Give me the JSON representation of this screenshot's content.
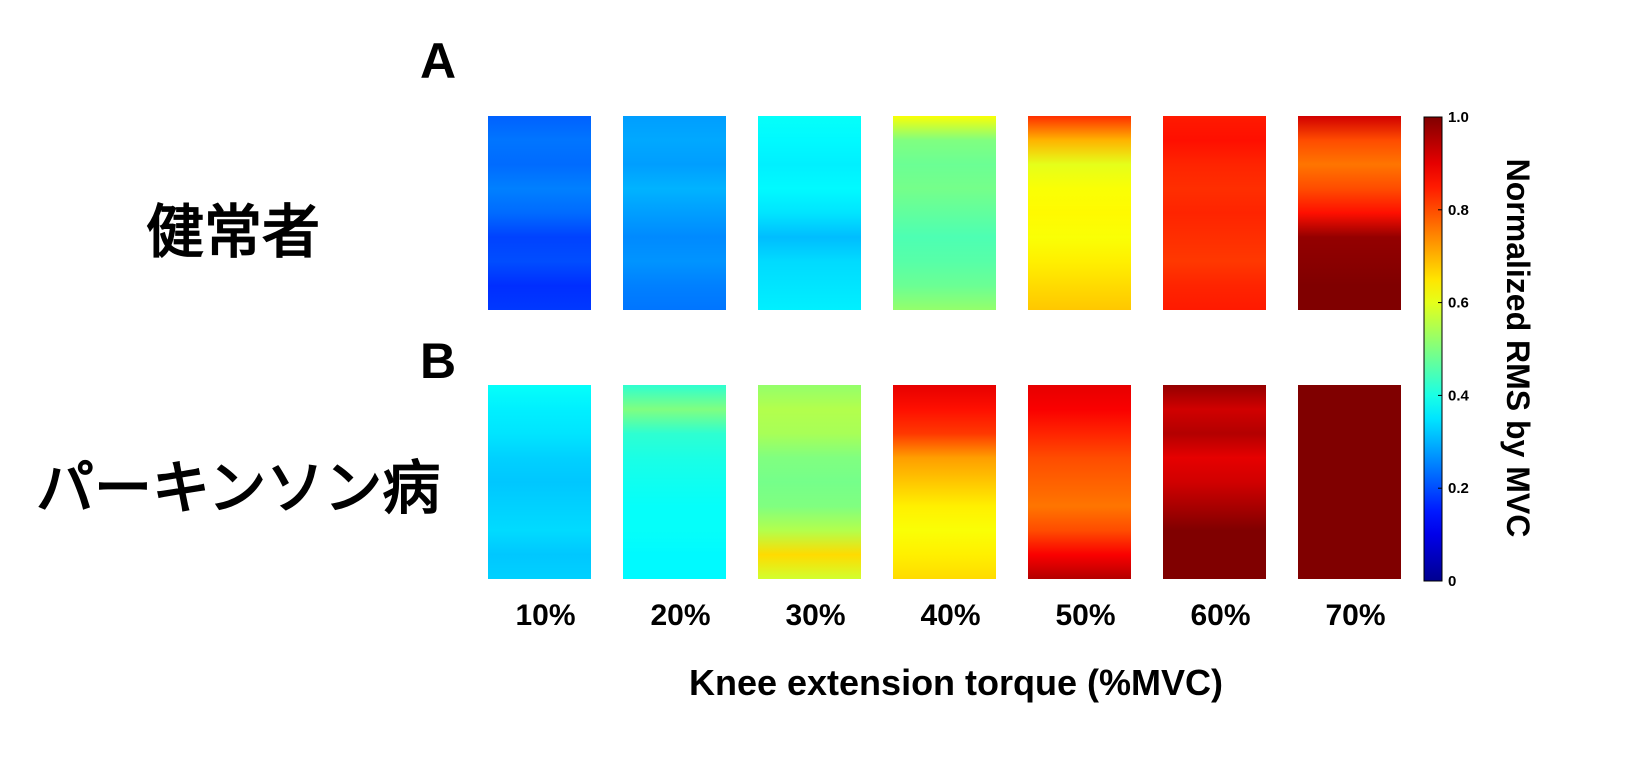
{
  "panels": [
    {
      "letter": "A",
      "group": "健常者"
    },
    {
      "letter": "B",
      "group": "パーキンソン病"
    }
  ],
  "chart_data": {
    "type": "heatmap",
    "xlabel": "Knee extension torque (%MVC)",
    "categories": [
      "10%",
      "20%",
      "30%",
      "40%",
      "50%",
      "60%",
      "70%"
    ],
    "colorbar": {
      "label": "Normalized RMS by MVC",
      "range": [
        0,
        1.0
      ],
      "ticks": [
        "0",
        "0.2",
        "0.4",
        "0.6",
        "0.8",
        "1.0"
      ],
      "colormap": "jet"
    },
    "rows": [
      {
        "name": "健常者",
        "values": [
          [
            0.22,
            0.24,
            0.23,
            0.25,
            0.23,
            0.19,
            0.2,
            0.17,
            0.18
          ],
          [
            0.28,
            0.29,
            0.28,
            0.3,
            0.28,
            0.26,
            0.27,
            0.25,
            0.24
          ],
          [
            0.38,
            0.37,
            0.36,
            0.37,
            0.35,
            0.31,
            0.34,
            0.35,
            0.36
          ],
          [
            0.62,
            0.5,
            0.48,
            0.49,
            0.47,
            0.45,
            0.46,
            0.48,
            0.52
          ],
          [
            0.83,
            0.7,
            0.6,
            0.62,
            0.63,
            0.62,
            0.64,
            0.66,
            0.68
          ],
          [
            0.85,
            0.86,
            0.84,
            0.83,
            0.84,
            0.83,
            0.82,
            0.84,
            0.85
          ],
          [
            0.92,
            0.8,
            0.76,
            0.8,
            0.86,
            0.98,
            0.99,
            1.0,
            1.0
          ]
        ]
      },
      {
        "name": "パーキンソン病",
        "values": [
          [
            0.38,
            0.36,
            0.35,
            0.33,
            0.32,
            0.33,
            0.34,
            0.32,
            0.33
          ],
          [
            0.42,
            0.5,
            0.42,
            0.4,
            0.39,
            0.38,
            0.38,
            0.37,
            0.37
          ],
          [
            0.52,
            0.55,
            0.54,
            0.5,
            0.49,
            0.5,
            0.55,
            0.66,
            0.58
          ],
          [
            0.9,
            0.86,
            0.82,
            0.72,
            0.68,
            0.64,
            0.62,
            0.64,
            0.66
          ],
          [
            0.9,
            0.88,
            0.84,
            0.8,
            0.78,
            0.76,
            0.8,
            0.88,
            0.95
          ],
          [
            0.98,
            0.92,
            0.95,
            0.9,
            0.92,
            0.96,
            1.0,
            1.0,
            1.0
          ],
          [
            1.0,
            1.0,
            1.0,
            1.0,
            1.0,
            1.0,
            1.0,
            1.0,
            1.0
          ]
        ]
      }
    ]
  }
}
